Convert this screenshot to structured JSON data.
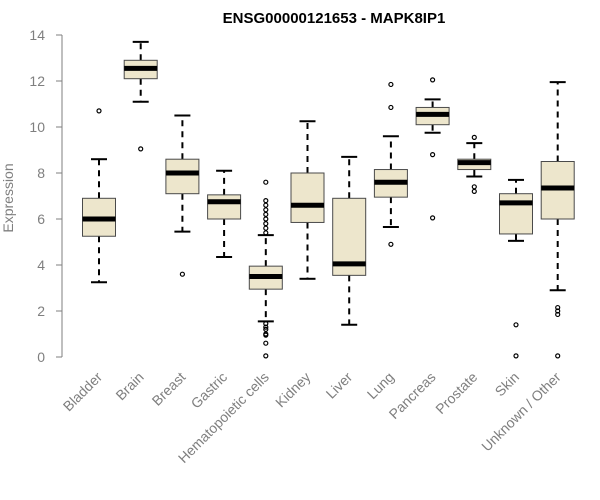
{
  "chart_data": {
    "type": "boxplot",
    "title": "ENSG00000121653 - MAPK8IP1",
    "xlabel": "",
    "ylabel": "Expression",
    "ylim": [
      0,
      14
    ],
    "yticks": [
      0,
      2,
      4,
      6,
      8,
      10,
      12,
      14
    ],
    "grid": false,
    "box_color": "#ede6cc",
    "box_stroke": "#4a4a4a",
    "median_color": "#000000",
    "categories": [
      "Bladder",
      "Brain",
      "Breast",
      "Gastric",
      "Hematopoietic cells",
      "Kidney",
      "Liver",
      "Lung",
      "Pancreas",
      "Prostate",
      "Skin",
      "Unknown / Other"
    ],
    "boxes": [
      {
        "name": "Bladder",
        "whisker_low": 3.25,
        "q1": 5.25,
        "median": 6.0,
        "q3": 6.9,
        "whisker_high": 8.6,
        "outliers": [
          10.7
        ]
      },
      {
        "name": "Brain",
        "whisker_low": 11.1,
        "q1": 12.1,
        "median": 12.55,
        "q3": 12.9,
        "whisker_high": 13.7,
        "outliers": [
          9.05
        ]
      },
      {
        "name": "Breast",
        "whisker_low": 5.45,
        "q1": 7.1,
        "median": 8.0,
        "q3": 8.6,
        "whisker_high": 10.5,
        "outliers": [
          3.6
        ]
      },
      {
        "name": "Gastric",
        "whisker_low": 4.35,
        "q1": 6.0,
        "median": 6.75,
        "q3": 7.05,
        "whisker_high": 8.1,
        "outliers": []
      },
      {
        "name": "Hematopoietic cells",
        "whisker_low": 1.55,
        "q1": 2.95,
        "median": 3.5,
        "q3": 3.95,
        "whisker_high": 5.3,
        "outliers": [
          7.6,
          6.8,
          6.6,
          6.4,
          6.2,
          6.0,
          5.8,
          5.6,
          5.4,
          1.45,
          1.3,
          1.2,
          1.0,
          0.95,
          0.6,
          0.05
        ]
      },
      {
        "name": "Kidney",
        "whisker_low": 3.4,
        "q1": 5.85,
        "median": 6.6,
        "q3": 8.0,
        "whisker_high": 10.25,
        "outliers": []
      },
      {
        "name": "Liver",
        "whisker_low": 1.4,
        "q1": 3.55,
        "median": 4.05,
        "q3": 6.9,
        "whisker_high": 8.7,
        "outliers": []
      },
      {
        "name": "Lung",
        "whisker_low": 5.65,
        "q1": 6.95,
        "median": 7.6,
        "q3": 8.15,
        "whisker_high": 9.6,
        "outliers": [
          11.85,
          10.85,
          4.9
        ]
      },
      {
        "name": "Pancreas",
        "whisker_low": 9.75,
        "q1": 10.1,
        "median": 10.55,
        "q3": 10.85,
        "whisker_high": 11.2,
        "outliers": [
          12.05,
          8.8,
          6.05
        ]
      },
      {
        "name": "Prostate",
        "whisker_low": 7.85,
        "q1": 8.15,
        "median": 8.45,
        "q3": 8.6,
        "whisker_high": 9.3,
        "outliers": [
          9.55,
          7.4,
          7.2
        ]
      },
      {
        "name": "Skin",
        "whisker_low": 5.05,
        "q1": 5.35,
        "median": 6.7,
        "q3": 7.1,
        "whisker_high": 7.7,
        "outliers": [
          1.4,
          0.05
        ]
      },
      {
        "name": "Unknown / Other",
        "whisker_low": 2.9,
        "q1": 6.0,
        "median": 7.35,
        "q3": 8.5,
        "whisker_high": 11.95,
        "outliers": [
          2.15,
          2.0,
          1.85,
          0.05
        ]
      }
    ]
  }
}
